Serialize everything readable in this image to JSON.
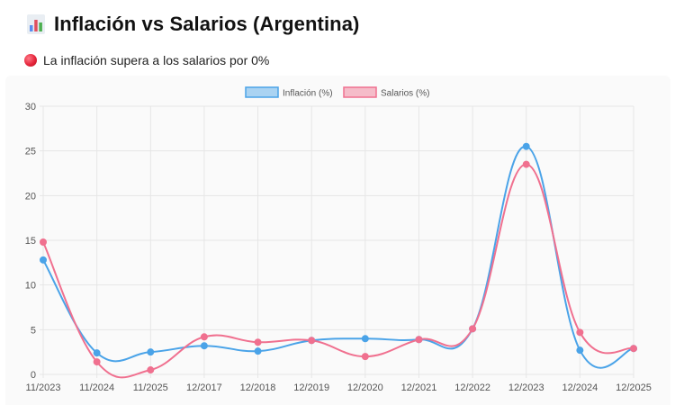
{
  "header": {
    "icon": "bar-chart-icon",
    "title": "Inflación vs Salarios (Argentina)"
  },
  "status": {
    "icon": "red-circle-icon",
    "text": "La inflación supera a los salarios por 0%"
  },
  "colors": {
    "inflacion": "#4aa3e8",
    "salarios": "#f0708f",
    "grid": "#e6e6e6"
  },
  "chart_data": {
    "type": "line",
    "categories": [
      "11/2023",
      "11/2024",
      "11/2025",
      "12/2017",
      "12/2018",
      "12/2019",
      "12/2020",
      "12/2021",
      "12/2022",
      "12/2023",
      "12/2024",
      "12/2025"
    ],
    "series": [
      {
        "name": "Inflación (%)",
        "values": [
          12.8,
          2.4,
          2.5,
          3.2,
          2.6,
          3.8,
          4.0,
          3.9,
          5.1,
          25.5,
          2.7,
          2.9
        ]
      },
      {
        "name": "Salarios (%)",
        "values": [
          14.8,
          1.4,
          0.5,
          4.2,
          3.6,
          3.8,
          2.0,
          3.9,
          5.1,
          23.5,
          4.7,
          2.9
        ]
      }
    ],
    "yticks": [
      "0",
      "5",
      "10",
      "15",
      "20",
      "25",
      "30"
    ],
    "ylim": [
      0,
      30
    ],
    "legend": "top-center",
    "grid": true
  }
}
